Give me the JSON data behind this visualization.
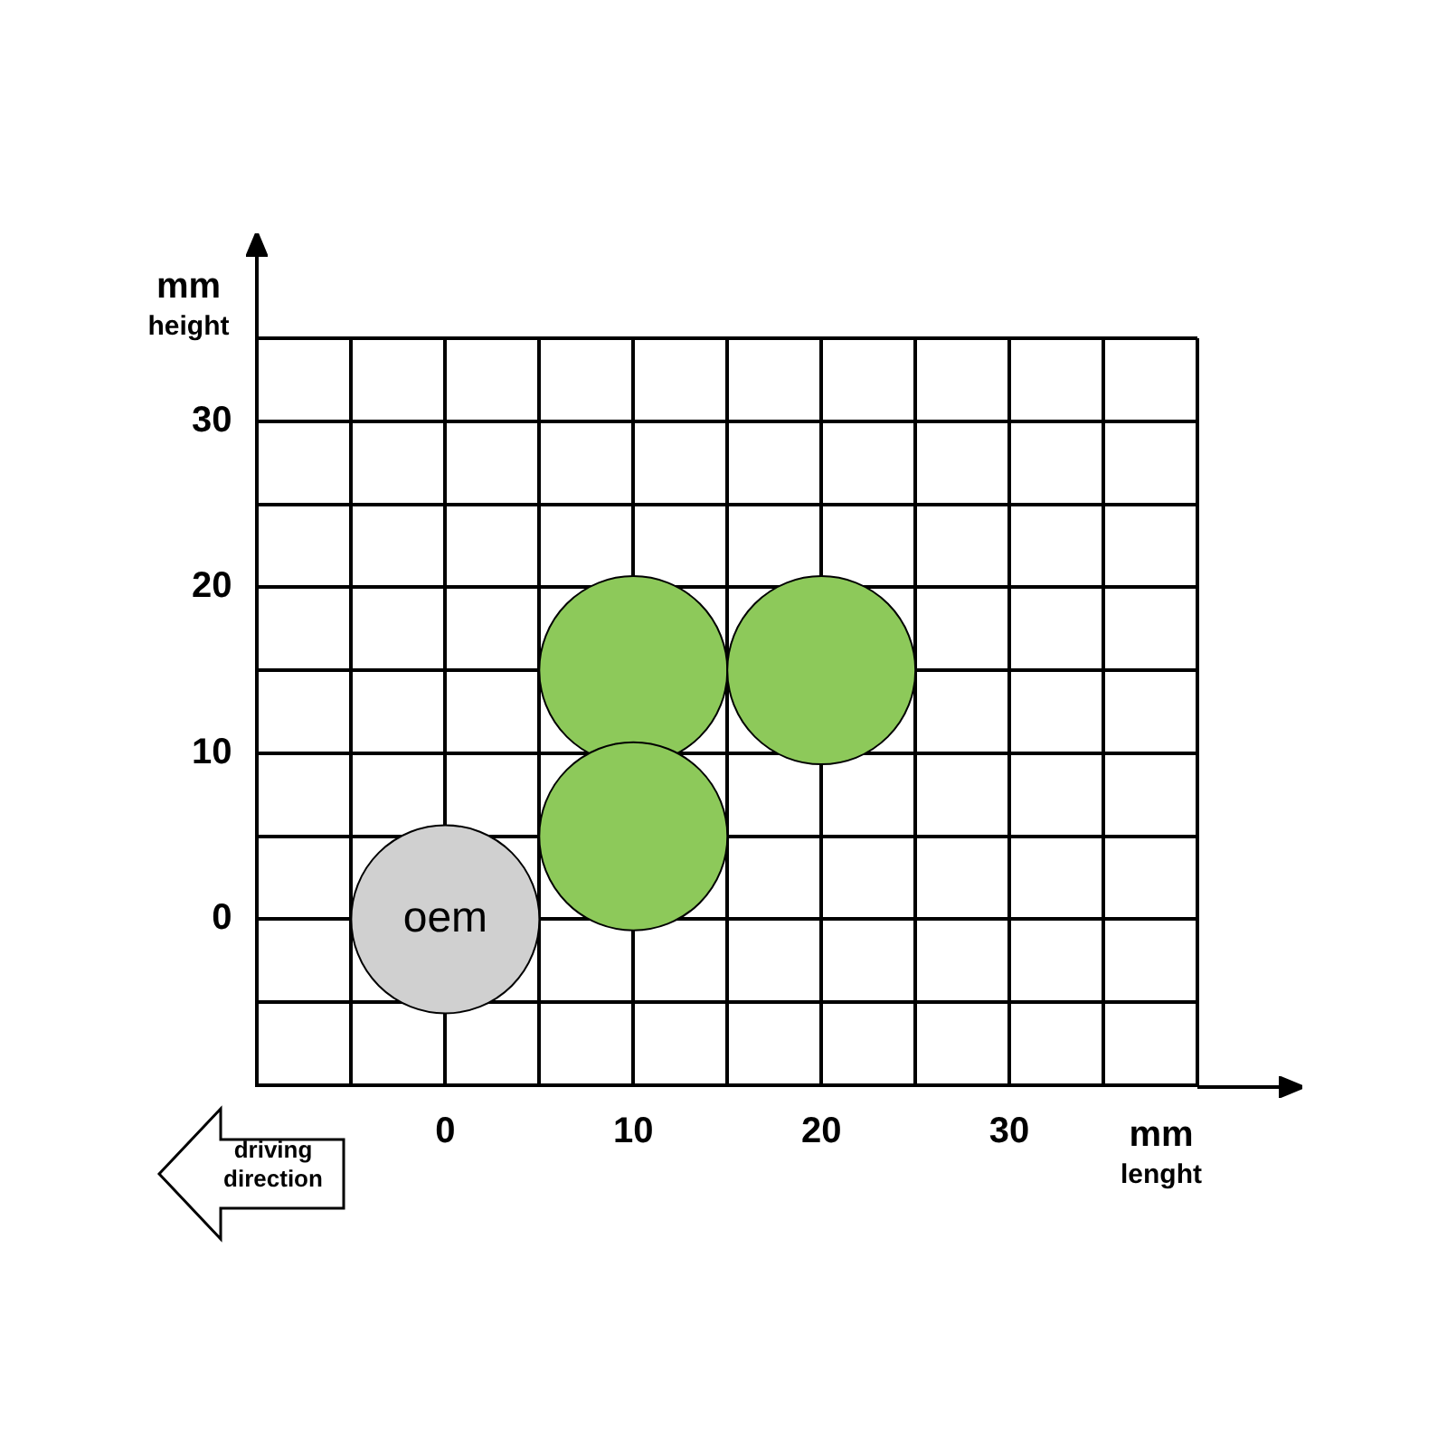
{
  "chart_data": {
    "type": "bubble",
    "xlabel": "mm lenght",
    "ylabel": "mm height",
    "xlim": [
      -10,
      40
    ],
    "xticks": [
      {
        "value": -5,
        "label": null
      },
      0,
      {
        "value": 5,
        "label": null
      },
      10,
      {
        "value": 15,
        "label": null
      },
      20,
      {
        "value": 25,
        "label": null
      },
      30,
      {
        "value": 35,
        "label": null
      },
      {
        "value": 40,
        "label": null
      }
    ],
    "ylim": [
      -10,
      35
    ],
    "yticks": [
      {
        "value": -5,
        "label": null
      },
      0,
      {
        "value": 5,
        "label": null
      },
      10,
      {
        "value": 15,
        "label": null
      },
      20,
      {
        "value": 25,
        "label": null
      },
      30,
      {
        "value": 35,
        "label": null
      }
    ],
    "grid": true,
    "legend": false,
    "series": [
      {
        "color": "#d0d0d0",
        "x": [
          0
        ],
        "values": [
          0
        ],
        "sizes": [
          1
        ]
      },
      {
        "color": "#8dc95a",
        "x": [
          10,
          10,
          20
        ],
        "values": [
          15,
          5,
          15
        ],
        "sizes": [
          1,
          1,
          1
        ]
      }
    ],
    "annotations": [
      {
        "text": "oem",
        "x": 0,
        "y": 0
      },
      "driving direction"
    ]
  }
}
